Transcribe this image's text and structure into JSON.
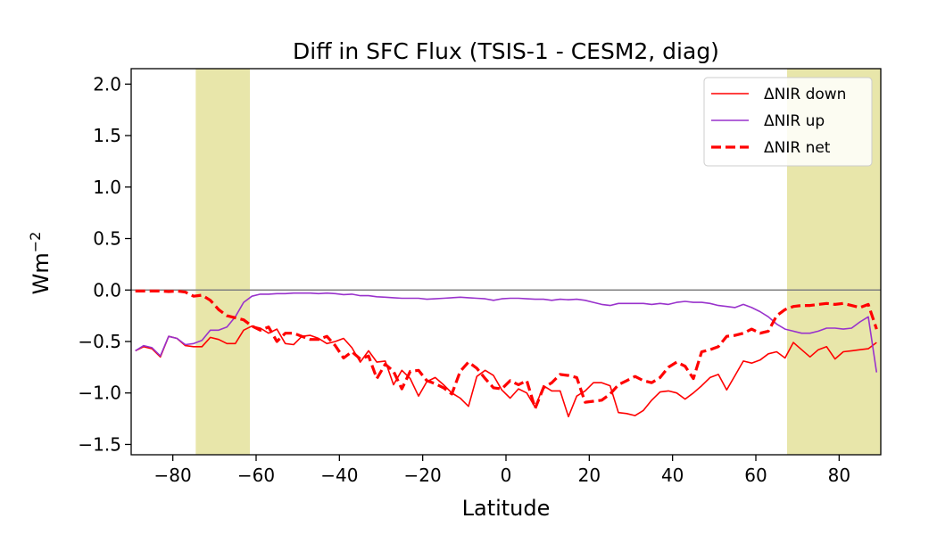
{
  "chart_data": {
    "type": "line",
    "title": "Diff in SFC Flux (TSIS-1 - CESM2, diag)",
    "xlabel": "Latitude",
    "ylabel": "Wm",
    "ylabel_superscript": "−2",
    "xlim": [
      -90,
      90
    ],
    "ylim": [
      -1.6,
      2.15
    ],
    "xticks": [
      -80,
      -60,
      -40,
      -20,
      0,
      20,
      40,
      60,
      80
    ],
    "xtick_labels": [
      "−80",
      "−60",
      "−40",
      "−20",
      "0",
      "20",
      "40",
      "60",
      "80"
    ],
    "yticks": [
      -1.5,
      -1.0,
      -0.5,
      0.0,
      0.5,
      1.0,
      1.5,
      2.0
    ],
    "ytick_labels": [
      "−1.5",
      "−1.0",
      "−0.5",
      "0.0",
      "0.5",
      "1.0",
      "1.5",
      "2.0"
    ],
    "grid": false,
    "legend_position": "top-right",
    "zero_line": {
      "y": 0,
      "color": "#808080"
    },
    "shaded_bands": [
      {
        "from": -74.5,
        "to": -61.5,
        "color": "#e8e6aa"
      },
      {
        "from": 67.5,
        "to": 90,
        "color": "#e8e6aa"
      }
    ],
    "x": [
      -89,
      -87,
      -85,
      -83,
      -81,
      -79,
      -77,
      -75,
      -73,
      -71,
      -69,
      -67,
      -65,
      -63,
      -61,
      -59,
      -57,
      -55,
      -53,
      -51,
      -49,
      -47,
      -45,
      -43,
      -41,
      -39,
      -37,
      -35,
      -33,
      -31,
      -29,
      -27,
      -25,
      -23,
      -21,
      -19,
      -17,
      -15,
      -13,
      -11,
      -9,
      -7,
      -5,
      -3,
      -1,
      1,
      3,
      5,
      7,
      9,
      11,
      13,
      15,
      17,
      19,
      21,
      23,
      25,
      27,
      29,
      31,
      33,
      35,
      37,
      39,
      41,
      43,
      45,
      47,
      49,
      51,
      53,
      55,
      57,
      59,
      61,
      63,
      65,
      67,
      69,
      71,
      73,
      75,
      77,
      79,
      81,
      83,
      85,
      87,
      89
    ],
    "series": [
      {
        "name": "ΔNIR down",
        "color": "#ff0000",
        "style": "solid",
        "width": 1.6,
        "values": [
          -0.59,
          -0.55,
          -0.57,
          -0.65,
          -0.45,
          -0.47,
          -0.54,
          -0.55,
          -0.55,
          -0.46,
          -0.48,
          -0.52,
          -0.52,
          -0.39,
          -0.35,
          -0.37,
          -0.42,
          -0.38,
          -0.52,
          -0.53,
          -0.45,
          -0.44,
          -0.47,
          -0.52,
          -0.5,
          -0.47,
          -0.56,
          -0.7,
          -0.59,
          -0.7,
          -0.69,
          -0.92,
          -0.78,
          -0.86,
          -1.03,
          -0.89,
          -0.85,
          -0.92,
          -1.0,
          -1.05,
          -1.13,
          -0.84,
          -0.78,
          -0.83,
          -0.97,
          -1.05,
          -0.96,
          -1.0,
          -1.14,
          -0.93,
          -0.98,
          -0.98,
          -1.23,
          -1.03,
          -0.98,
          -0.9,
          -0.9,
          -0.93,
          -1.19,
          -1.2,
          -1.22,
          -1.17,
          -1.07,
          -0.99,
          -0.98,
          -1.0,
          -1.06,
          -1.0,
          -0.93,
          -0.85,
          -0.82,
          -0.97,
          -0.83,
          -0.69,
          -0.71,
          -0.68,
          -0.62,
          -0.6,
          -0.66,
          -0.51,
          -0.58,
          -0.65,
          -0.58,
          -0.55,
          -0.67,
          -0.6,
          -0.59,
          -0.58,
          -0.57,
          -0.51
        ]
      },
      {
        "name": "ΔNIR up",
        "color": "#9932cc",
        "style": "solid",
        "width": 1.6,
        "values": [
          -0.59,
          -0.54,
          -0.56,
          -0.64,
          -0.45,
          -0.47,
          -0.53,
          -0.52,
          -0.49,
          -0.39,
          -0.39,
          -0.36,
          -0.26,
          -0.12,
          -0.06,
          -0.04,
          -0.04,
          -0.035,
          -0.035,
          -0.03,
          -0.03,
          -0.03,
          -0.035,
          -0.03,
          -0.035,
          -0.045,
          -0.04,
          -0.055,
          -0.055,
          -0.065,
          -0.07,
          -0.075,
          -0.08,
          -0.08,
          -0.08,
          -0.09,
          -0.085,
          -0.08,
          -0.075,
          -0.07,
          -0.075,
          -0.08,
          -0.085,
          -0.1,
          -0.085,
          -0.08,
          -0.08,
          -0.085,
          -0.09,
          -0.09,
          -0.1,
          -0.09,
          -0.095,
          -0.09,
          -0.1,
          -0.12,
          -0.14,
          -0.15,
          -0.13,
          -0.13,
          -0.13,
          -0.13,
          -0.14,
          -0.13,
          -0.14,
          -0.12,
          -0.11,
          -0.12,
          -0.12,
          -0.13,
          -0.15,
          -0.16,
          -0.17,
          -0.14,
          -0.17,
          -0.21,
          -0.26,
          -0.33,
          -0.38,
          -0.4,
          -0.42,
          -0.42,
          -0.4,
          -0.37,
          -0.37,
          -0.38,
          -0.37,
          -0.31,
          -0.26,
          -0.8
        ]
      },
      {
        "name": "ΔNIR net",
        "color": "#ff0000",
        "style": "dashed",
        "width": 3.2,
        "values": [
          -0.01,
          -0.01,
          -0.01,
          -0.01,
          -0.015,
          -0.01,
          -0.02,
          -0.06,
          -0.05,
          -0.1,
          -0.19,
          -0.25,
          -0.27,
          -0.29,
          -0.35,
          -0.39,
          -0.36,
          -0.5,
          -0.42,
          -0.42,
          -0.45,
          -0.48,
          -0.48,
          -0.45,
          -0.54,
          -0.66,
          -0.6,
          -0.67,
          -0.64,
          -0.86,
          -0.72,
          -0.79,
          -0.96,
          -0.79,
          -0.78,
          -0.88,
          -0.91,
          -0.95,
          -1.01,
          -0.79,
          -0.7,
          -0.76,
          -0.86,
          -0.95,
          -0.96,
          -0.88,
          -0.92,
          -0.88,
          -1.15,
          -0.95,
          -0.9,
          -0.82,
          -0.83,
          -0.85,
          -1.09,
          -1.08,
          -1.07,
          -1.01,
          -0.92,
          -0.88,
          -0.84,
          -0.88,
          -0.9,
          -0.85,
          -0.75,
          -0.7,
          -0.74,
          -0.86,
          -0.6,
          -0.58,
          -0.55,
          -0.45,
          -0.44,
          -0.42,
          -0.38,
          -0.42,
          -0.4,
          -0.25,
          -0.19,
          -0.16,
          -0.15,
          -0.15,
          -0.14,
          -0.13,
          -0.14,
          -0.13,
          -0.15,
          -0.17,
          -0.14,
          -0.38
        ]
      }
    ]
  }
}
